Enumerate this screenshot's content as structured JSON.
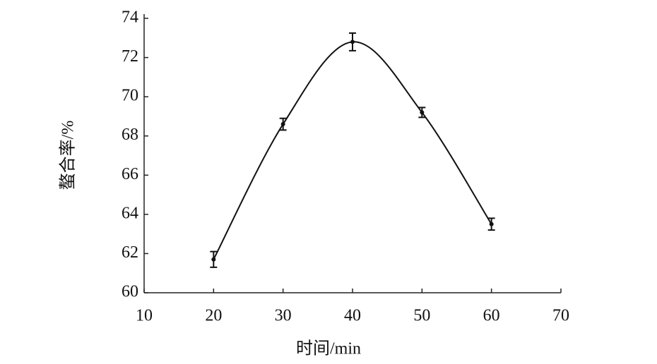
{
  "chart_data": {
    "type": "line",
    "x_label": "时间/min",
    "y_label": "螯合率/%",
    "series": [
      {
        "name": "螯合率",
        "color": "#111111",
        "x": [
          20,
          30,
          40,
          50,
          60
        ],
        "values": [
          61.7,
          68.6,
          72.8,
          69.2,
          63.5
        ],
        "errors": [
          0.4,
          0.3,
          0.45,
          0.25,
          0.3
        ]
      }
    ],
    "xlim": [
      10,
      70
    ],
    "xticks": [
      10,
      20,
      30,
      40,
      50,
      60,
      70
    ],
    "ylim": [
      60,
      74
    ],
    "yticks": [
      60,
      62,
      64,
      66,
      68,
      70,
      72,
      74
    ],
    "smooth": true,
    "grid": false
  }
}
